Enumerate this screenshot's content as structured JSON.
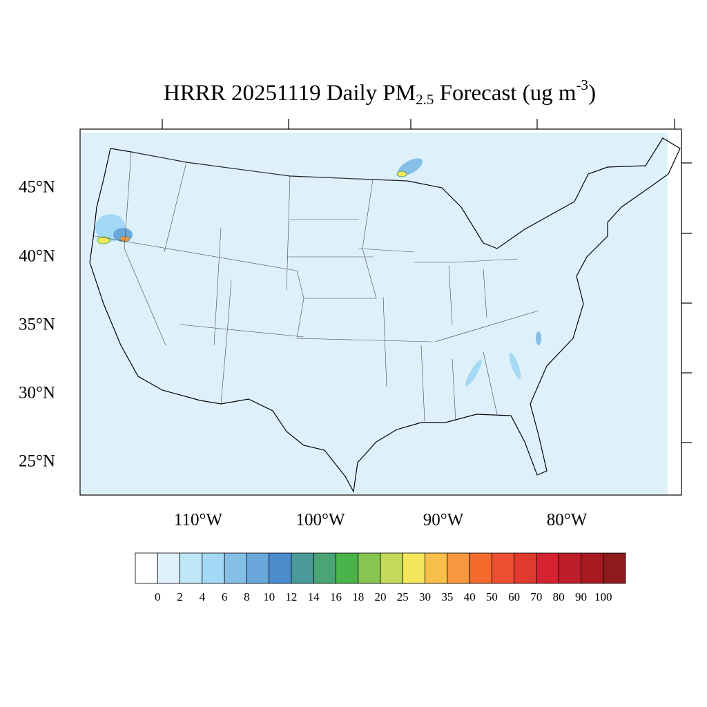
{
  "title": {
    "main": "HRRR 20251119 Daily PM",
    "sub": "2.5",
    "mid": " Forecast (ug m",
    "sup": "-3",
    "end": ")"
  },
  "lat_labels": [
    "45°N",
    "40°N",
    "35°N",
    "30°N",
    "25°N"
  ],
  "lon_labels": [
    "110°W",
    "100°W",
    "90°W",
    "80°W"
  ],
  "colorbar": {
    "levels": [
      0,
      2,
      4,
      6,
      8,
      10,
      12,
      14,
      16,
      18,
      20,
      25,
      30,
      35,
      40,
      50,
      60,
      70,
      80,
      90,
      100
    ],
    "colors": [
      "#ffffff",
      "#dff2fb",
      "#bfe6f7",
      "#a3d9f5",
      "#86bfe6",
      "#6aa8dc",
      "#4a8ccc",
      "#4a9a9c",
      "#4aa576",
      "#4ab44a",
      "#86c552",
      "#c2d95a",
      "#f5e65c",
      "#f8c04a",
      "#f7983e",
      "#f36b2c",
      "#ec5030",
      "#e03a2e",
      "#d42230",
      "#be1e2a",
      "#a81a22",
      "#8f1a1e"
    ]
  }
}
